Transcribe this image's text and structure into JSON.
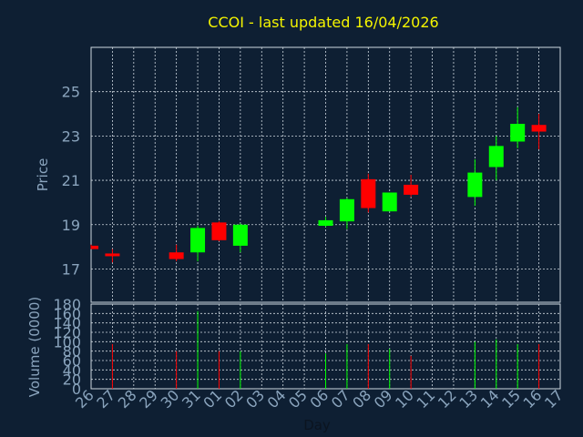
{
  "chart_data": {
    "type": "candlestick",
    "title": "CCOI - last updated 16/04/2026",
    "price_panel": {
      "ylabel": "Price",
      "ylim": [
        15.5,
        27.0
      ],
      "yticks": [
        "17",
        "19",
        "21",
        "23",
        "25"
      ],
      "ytick_values": [
        17,
        19,
        21,
        23,
        25
      ],
      "grid": true
    },
    "volume_panel": {
      "ylabel": "Volume (0000)",
      "ylim": [
        0,
        180
      ],
      "yticks": [
        "0",
        "20",
        "40",
        "60",
        "80",
        "100",
        "120",
        "140",
        "160",
        "180"
      ],
      "ytick_values": [
        0,
        20,
        40,
        60,
        80,
        100,
        120,
        140,
        160,
        180
      ],
      "grid": true
    },
    "xlabel": "Day",
    "x_ticks": [
      "26",
      "27",
      "28",
      "29",
      "30",
      "31",
      "01",
      "02",
      "03",
      "04",
      "05",
      "06",
      "07",
      "08",
      "09",
      "10",
      "11",
      "12",
      "13",
      "14",
      "15",
      "16",
      "17"
    ],
    "colors": {
      "up": "#00ff00",
      "down": "#ff0000",
      "background": "#0e1f33",
      "grid": "#cfd8e0",
      "title": "#f4f400",
      "ticks": "#8aa4bd"
    },
    "candles": [
      {
        "day": "26",
        "open": 18.05,
        "high": 18.1,
        "low": 17.9,
        "close": 17.9,
        "volume": 0
      },
      {
        "day": "27",
        "open": 17.7,
        "high": 17.9,
        "low": 17.3,
        "close": 17.6,
        "volume": 95
      },
      {
        "day": "30",
        "open": 17.75,
        "high": 18.1,
        "low": 17.35,
        "close": 17.45,
        "volume": 80
      },
      {
        "day": "31",
        "open": 17.75,
        "high": 18.95,
        "low": 17.35,
        "close": 18.85,
        "volume": 165
      },
      {
        "day": "01",
        "open": 19.1,
        "high": 19.15,
        "low": 18.25,
        "close": 18.3,
        "volume": 80
      },
      {
        "day": "02",
        "open": 18.05,
        "high": 19.05,
        "low": 17.75,
        "close": 19.0,
        "volume": 80
      },
      {
        "day": "06",
        "open": 18.95,
        "high": 19.35,
        "low": 18.9,
        "close": 19.2,
        "volume": 75
      },
      {
        "day": "07",
        "open": 19.15,
        "high": 20.2,
        "low": 18.8,
        "close": 20.15,
        "volume": 95
      },
      {
        "day": "08",
        "open": 21.05,
        "high": 21.3,
        "low": 19.55,
        "close": 19.75,
        "volume": 95
      },
      {
        "day": "09",
        "open": 19.6,
        "high": 20.45,
        "low": 19.6,
        "close": 20.45,
        "volume": 85
      },
      {
        "day": "10",
        "open": 20.8,
        "high": 21.25,
        "low": 20.25,
        "close": 20.35,
        "volume": 70
      },
      {
        "day": "13",
        "open": 20.25,
        "high": 21.95,
        "low": 19.85,
        "close": 21.35,
        "volume": 100
      },
      {
        "day": "14",
        "open": 21.6,
        "high": 23.0,
        "low": 21.0,
        "close": 22.55,
        "volume": 105
      },
      {
        "day": "15",
        "open": 22.75,
        "high": 24.3,
        "low": 22.45,
        "close": 23.55,
        "volume": 95
      },
      {
        "day": "16",
        "open": 23.5,
        "high": 24.0,
        "low": 22.4,
        "close": 23.2,
        "volume": 95
      }
    ]
  }
}
